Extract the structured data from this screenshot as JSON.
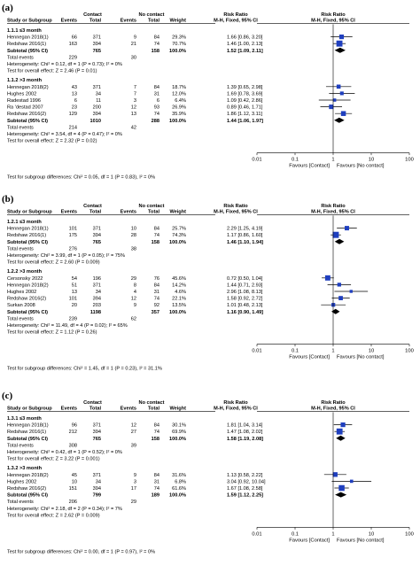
{
  "chart_data": [
    {
      "type": "forest",
      "panel_label": "(a)",
      "header": {
        "col_study": "Study or Subgroup",
        "group1": "Contact",
        "group2": "No contact",
        "events": "Events",
        "total": "Total",
        "weight": "Weight",
        "rr_title": "Risk Ratio",
        "rr_method": "M-H, Fixed, 95% CI"
      },
      "subgroups": [
        {
          "title": "1.1.1 ≤3 month",
          "studies": [
            {
              "name": "Hennegan 2018(1)",
              "e1": "66",
              "t1": "371",
              "e2": "9",
              "t2": "84",
              "weight": "29.3%",
              "ci_text": "1.66 [0.86, 3.20]",
              "rr": 1.66,
              "lo": 0.86,
              "hi": 3.2
            },
            {
              "name": "Redshaw 2016(1)",
              "e1": "163",
              "t1": "394",
              "e2": "21",
              "t2": "74",
              "weight": "70.7%",
              "ci_text": "1.46 [1.00, 2.13]",
              "rr": 1.46,
              "lo": 1.0,
              "hi": 2.13
            }
          ],
          "subtotal": {
            "label": "Subtotal (95% CI)",
            "t1": "765",
            "t2": "158",
            "weight": "100.0%",
            "ci_text": "1.52 [1.09, 2.11]",
            "rr": 1.52,
            "lo": 1.09,
            "hi": 2.11
          },
          "total_events": {
            "label": "Total events",
            "e1": "229",
            "e2": "30"
          },
          "heterogeneity": "Heterogeneity: Chi² = 0.12, df = 1 (P = 0.73); I² = 0%",
          "overall": "Test for overall effect: Z = 2.46 (P = 0.01)"
        },
        {
          "title": "1.1.2 >3 month",
          "studies": [
            {
              "name": "Hennegan 2018(2)",
              "e1": "43",
              "t1": "371",
              "e2": "7",
              "t2": "84",
              "weight": "18.7%",
              "ci_text": "1.39 [0.65, 2.98]",
              "rr": 1.39,
              "lo": 0.65,
              "hi": 2.98
            },
            {
              "name": "Hughes 2002",
              "e1": "13",
              "t1": "34",
              "e2": "7",
              "t2": "31",
              "weight": "12.0%",
              "ci_text": "1.69 [0.78, 3.69]",
              "rr": 1.69,
              "lo": 0.78,
              "hi": 3.69
            },
            {
              "name": "Radestad 1996",
              "e1": "6",
              "t1": "11",
              "e2": "3",
              "t2": "6",
              "weight": "6.4%",
              "ci_text": "1.09 [0.42, 2.86]",
              "rr": 1.09,
              "lo": 0.42,
              "hi": 2.86
            },
            {
              "name": "Ra ʻdestad 2007",
              "e1": "23",
              "t1": "200",
              "e2": "12",
              "t2": "93",
              "weight": "26.9%",
              "ci_text": "0.89 [0.46, 1.71]",
              "rr": 0.89,
              "lo": 0.46,
              "hi": 1.71
            },
            {
              "name": "Redshaw 2016(2)",
              "e1": "129",
              "t1": "394",
              "e2": "13",
              "t2": "74",
              "weight": "35.9%",
              "ci_text": "1.86 [1.12, 3.11]",
              "rr": 1.86,
              "lo": 1.12,
              "hi": 3.11
            }
          ],
          "subtotal": {
            "label": "Subtotal (95% CI)",
            "t1": "1010",
            "t2": "288",
            "weight": "100.0%",
            "ci_text": "1.44 [1.06, 1.97]",
            "rr": 1.44,
            "lo": 1.06,
            "hi": 1.97
          },
          "total_events": {
            "label": "Total events",
            "e1": "214",
            "e2": "42"
          },
          "heterogeneity": "Heterogeneity: Chi² = 3.54, df = 4 (P = 0.47); I² = 0%",
          "overall": "Test for overall effect: Z = 2.32 (P = 0.02)"
        }
      ],
      "axis": {
        "type": "log",
        "ticks": [
          0.01,
          0.1,
          1,
          10,
          100
        ],
        "tick_labels": [
          "0.01",
          "0.1",
          "1",
          "10",
          "100"
        ],
        "favours_left": "Favours [Contact]",
        "favours_right": "Favours [No contact]"
      },
      "subgroup_test": "Test for subgroup differences: Chi² = 0.05, df = 1 (P = 0.83), I² = 0%"
    },
    {
      "type": "forest",
      "panel_label": "(b)",
      "header": {
        "col_study": "Study or Subgroup",
        "group1": "Contact",
        "group2": "No contact",
        "events": "Events",
        "total": "Total",
        "weight": "Weight",
        "rr_title": "Risk Ratio",
        "rr_method": "M-H, Fixed, 95% CI"
      },
      "subgroups": [
        {
          "title": "1.2.1 ≤3 month",
          "studies": [
            {
              "name": "Hennegan 2018(1)",
              "e1": "101",
              "t1": "371",
              "e2": "10",
              "t2": "84",
              "weight": "25.7%",
              "ci_text": "2.29 [1.25, 4.19]",
              "rr": 2.29,
              "lo": 1.25,
              "hi": 4.19
            },
            {
              "name": "Redshaw 2016(1)",
              "e1": "175",
              "t1": "394",
              "e2": "28",
              "t2": "74",
              "weight": "74.3%",
              "ci_text": "1.17 [0.86, 1.60]",
              "rr": 1.17,
              "lo": 0.86,
              "hi": 1.6
            }
          ],
          "subtotal": {
            "label": "Subtotal (95% CI)",
            "t1": "765",
            "t2": "158",
            "weight": "100.0%",
            "ci_text": "1.46 [1.10, 1.94]",
            "rr": 1.46,
            "lo": 1.1,
            "hi": 1.94
          },
          "total_events": {
            "label": "Total events",
            "e1": "276",
            "e2": "38"
          },
          "heterogeneity": "Heterogeneity: Chi² = 3.99, df = 1 (P = 0.05); I² = 75%",
          "overall": "Test for overall effect: Z = 2.60 (P = 0.009)"
        },
        {
          "title": "1.2.2 >3 month",
          "studies": [
            {
              "name": "Cersonsky 2022",
              "e1": "54",
              "t1": "196",
              "e2": "29",
              "t2": "76",
              "weight": "45.6%",
              "ci_text": "0.72 [0.50, 1.04]",
              "rr": 0.72,
              "lo": 0.5,
              "hi": 1.04
            },
            {
              "name": "Hennegan 2018(2)",
              "e1": "51",
              "t1": "371",
              "e2": "8",
              "t2": "84",
              "weight": "14.2%",
              "ci_text": "1.44 [0.71, 2.93]",
              "rr": 1.44,
              "lo": 0.71,
              "hi": 2.93
            },
            {
              "name": "Hughes 2002",
              "e1": "13",
              "t1": "34",
              "e2": "4",
              "t2": "31",
              "weight": "4.6%",
              "ci_text": "2.96 [1.08, 8.13]",
              "rr": 2.96,
              "lo": 1.08,
              "hi": 8.13
            },
            {
              "name": "Redshaw 2016(2)",
              "e1": "101",
              "t1": "394",
              "e2": "12",
              "t2": "74",
              "weight": "22.1%",
              "ci_text": "1.58 [0.92, 2.72]",
              "rr": 1.58,
              "lo": 0.92,
              "hi": 2.72
            },
            {
              "name": "Surkan 2008",
              "e1": "20",
              "t1": "203",
              "e2": "9",
              "t2": "92",
              "weight": "13.5%",
              "ci_text": "1.01 [0.48, 2.13]",
              "rr": 1.01,
              "lo": 0.48,
              "hi": 2.13
            }
          ],
          "subtotal": {
            "label": "Subtotal (95% CI)",
            "t1": "1198",
            "t2": "357",
            "weight": "100.0%",
            "ci_text": "1.16 [0.90, 1.49]",
            "rr": 1.16,
            "lo": 0.9,
            "hi": 1.49
          },
          "total_events": {
            "label": "Total events",
            "e1": "239",
            "e2": "62"
          },
          "heterogeneity": "Heterogeneity: Chi² = 11.49, df = 4 (P = 0.02); I² = 65%",
          "overall": "Test for overall effect: Z = 1.12 (P = 0.26)"
        }
      ],
      "axis": {
        "type": "log",
        "ticks": [
          0.01,
          0.1,
          1,
          10,
          100
        ],
        "tick_labels": [
          "0.01",
          "0.1",
          "1",
          "10",
          "100"
        ],
        "favours_left": "Favours [Contact]",
        "favours_right": "Favours [No contact]"
      },
      "subgroup_test": "Test for subgroup differences: Chi² = 1.45, df = 1 (P = 0.23), I² = 31.1%"
    },
    {
      "type": "forest",
      "panel_label": "(c)",
      "header": {
        "col_study": "Study or Subgroup",
        "group1": "Contact",
        "group2": "No contact",
        "events": "Events",
        "total": "Total",
        "weight": "Weight",
        "rr_title": "Risk Ratio",
        "rr_method": "M-H, Fixed, 95% CI"
      },
      "subgroups": [
        {
          "title": "1.3.1 ≤3 month",
          "studies": [
            {
              "name": "Hennegan 2018(1)",
              "e1": "96",
              "t1": "371",
              "e2": "12",
              "t2": "84",
              "weight": "30.1%",
              "ci_text": "1.81 [1.04, 3.14]",
              "rr": 1.81,
              "lo": 1.04,
              "hi": 3.14
            },
            {
              "name": "Redshaw 2016(1)",
              "e1": "212",
              "t1": "394",
              "e2": "27",
              "t2": "74",
              "weight": "69.9%",
              "ci_text": "1.47 [1.08, 2.02]",
              "rr": 1.47,
              "lo": 1.08,
              "hi": 2.02
            }
          ],
          "subtotal": {
            "label": "Subtotal (95% CI)",
            "t1": "765",
            "t2": "158",
            "weight": "100.0%",
            "ci_text": "1.58 [1.19, 2.08]",
            "rr": 1.58,
            "lo": 1.19,
            "hi": 2.08
          },
          "total_events": {
            "label": "Total events",
            "e1": "308",
            "e2": "39"
          },
          "heterogeneity": "Heterogeneity: Chi² = 0.42, df = 1 (P = 0.52); I² = 0%",
          "overall": "Test for overall effect: Z = 3.22 (P = 0.001)"
        },
        {
          "title": "1.3.2 >3 month",
          "studies": [
            {
              "name": "Hennegan 2018(2)",
              "e1": "45",
              "t1": "371",
              "e2": "9",
              "t2": "84",
              "weight": "31.6%",
              "ci_text": "1.13 [0.58, 2.22]",
              "rr": 1.13,
              "lo": 0.58,
              "hi": 2.22
            },
            {
              "name": "Hughes 2002",
              "e1": "10",
              "t1": "34",
              "e2": "3",
              "t2": "31",
              "weight": "6.8%",
              "ci_text": "3.04 [0.92, 10.04]",
              "rr": 3.04,
              "lo": 0.92,
              "hi": 10.04
            },
            {
              "name": "Redshaw 2016(2)",
              "e1": "151",
              "t1": "394",
              "e2": "17",
              "t2": "74",
              "weight": "61.6%",
              "ci_text": "1.67 [1.08, 2.58]",
              "rr": 1.67,
              "lo": 1.08,
              "hi": 2.58
            }
          ],
          "subtotal": {
            "label": "Subtotal (95% CI)",
            "t1": "799",
            "t2": "189",
            "weight": "100.0%",
            "ci_text": "1.59 [1.12, 2.25]",
            "rr": 1.59,
            "lo": 1.12,
            "hi": 2.25
          },
          "total_events": {
            "label": "Total events",
            "e1": "206",
            "e2": "29"
          },
          "heterogeneity": "Heterogeneity: Chi² = 2.18, df = 2 (P = 0.34); I² = 7%",
          "overall": "Test for overall effect: Z = 2.62 (P = 0.009)"
        }
      ],
      "axis": {
        "type": "log",
        "ticks": [
          0.01,
          0.1,
          1,
          10,
          100
        ],
        "tick_labels": [
          "0.01",
          "0.1",
          "1",
          "10",
          "100"
        ],
        "favours_left": "Favours [Contact]",
        "favours_right": "Favours [No contact]"
      },
      "subgroup_test": "Test for subgroup differences: Chi² = 0.00, df = 1 (P = 0.97), I² = 0%"
    }
  ],
  "colors": {
    "study_marker": "#1f3fbf",
    "diamond": "#000000",
    "text": "#000000",
    "line": "#000000"
  }
}
